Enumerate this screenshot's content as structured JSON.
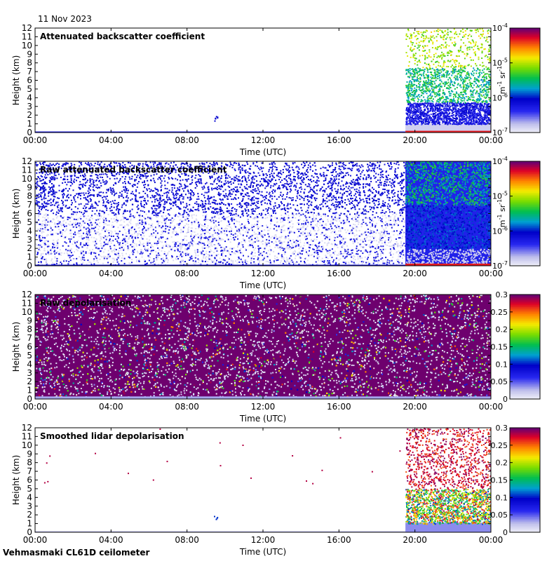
{
  "date_label": "11 Nov 2023",
  "footer_label": "Vehmasmaki CL61D ceilometer",
  "chart_data": [
    {
      "type": "heatmap",
      "title": "Attenuated backscatter coefficient",
      "xlabel": "Time (UTC)",
      "ylabel": "Height (km)",
      "x_ticks": [
        "00:00",
        "04:00",
        "08:00",
        "12:00",
        "16:00",
        "20:00",
        "00:00"
      ],
      "y_ticks": [
        "0",
        "1",
        "2",
        "3",
        "4",
        "5",
        "6",
        "7",
        "8",
        "9",
        "10",
        "11",
        "12"
      ],
      "ylim": [
        0,
        12
      ],
      "colorbar": {
        "scale": "log",
        "unit_base": "m",
        "unit_base_exp": "-1",
        "unit_sr": "sr",
        "unit_sr_exp": "-1",
        "ticks": [
          {
            "base": "10",
            "exp": "-7"
          },
          {
            "base": "10",
            "exp": "-6"
          },
          {
            "base": "10",
            "exp": "-5"
          },
          {
            "base": "10",
            "exp": "-4"
          }
        ]
      }
    },
    {
      "type": "heatmap",
      "title": "Raw attenuated backscatter coefficient",
      "xlabel": "Time (UTC)",
      "ylabel": "Height (km)",
      "x_ticks": [
        "00:00",
        "04:00",
        "08:00",
        "12:00",
        "16:00",
        "20:00",
        "00:00"
      ],
      "y_ticks": [
        "0",
        "1",
        "2",
        "3",
        "4",
        "5",
        "6",
        "7",
        "8",
        "9",
        "10",
        "11",
        "12"
      ],
      "ylim": [
        0,
        12
      ],
      "colorbar": {
        "scale": "log",
        "unit_base": "m",
        "unit_base_exp": "-1",
        "unit_sr": "sr",
        "unit_sr_exp": "-1",
        "ticks": [
          {
            "base": "10",
            "exp": "-7"
          },
          {
            "base": "10",
            "exp": "-6"
          },
          {
            "base": "10",
            "exp": "-5"
          },
          {
            "base": "10",
            "exp": "-4"
          }
        ]
      }
    },
    {
      "type": "heatmap",
      "title": "Raw depolarisation",
      "xlabel": "Time (UTC)",
      "ylabel": "Height (km)",
      "x_ticks": [
        "00:00",
        "04:00",
        "08:00",
        "12:00",
        "16:00",
        "20:00",
        "00:00"
      ],
      "y_ticks": [
        "0",
        "1",
        "2",
        "3",
        "4",
        "5",
        "6",
        "7",
        "8",
        "9",
        "10",
        "11",
        "12"
      ],
      "ylim": [
        0,
        12
      ],
      "colorbar": {
        "scale": "linear",
        "ticks": [
          "0",
          "0.05",
          "0.1",
          "0.15",
          "0.2",
          "0.25",
          "0.3"
        ]
      }
    },
    {
      "type": "heatmap",
      "title": "Smoothed lidar depolarisation",
      "xlabel": "Time (UTC)",
      "ylabel": "Height (km)",
      "x_ticks": [
        "00:00",
        "04:00",
        "08:00",
        "12:00",
        "16:00",
        "20:00",
        "00:00"
      ],
      "y_ticks": [
        "0",
        "1",
        "2",
        "3",
        "4",
        "5",
        "6",
        "7",
        "8",
        "9",
        "10",
        "11",
        "12"
      ],
      "ylim": [
        0,
        12
      ],
      "colorbar": {
        "scale": "linear",
        "ticks": [
          "0",
          "0.05",
          "0.1",
          "0.15",
          "0.2",
          "0.25",
          "0.3"
        ]
      }
    }
  ]
}
